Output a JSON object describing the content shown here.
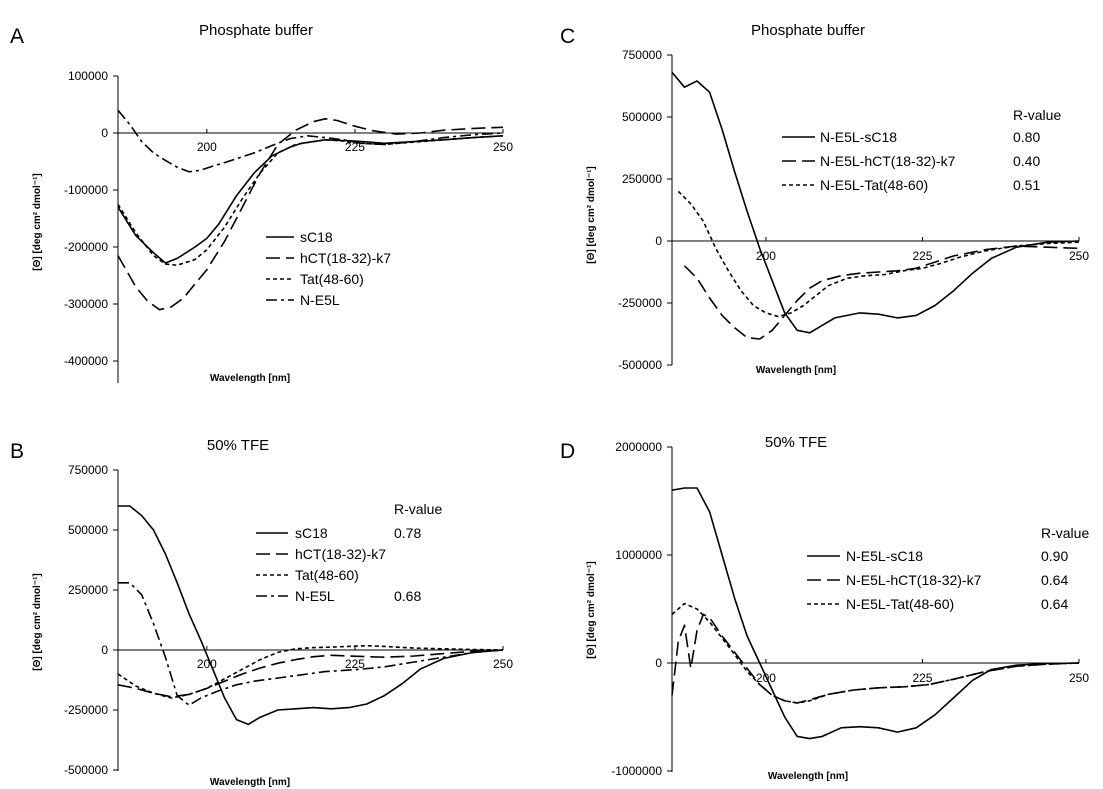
{
  "panels": [
    {
      "id": "A",
      "letter": "A",
      "title": "Phosphate buffer",
      "xlabel": "Wavelength [nm]",
      "ylabel": "[Θ] [deg cm² dmol⁻¹]",
      "r_value_header": "",
      "y_ticks": [
        "100000",
        "0",
        "-100000",
        "-200000",
        "-300000",
        "-400000"
      ],
      "x_ticks": [
        "200",
        "225",
        "250"
      ],
      "legend": [
        {
          "label": "sC18",
          "r": ""
        },
        {
          "label": "hCT(18-32)-k7",
          "r": ""
        },
        {
          "label": "Tat(48-60)",
          "r": ""
        },
        {
          "label": "N-E5L",
          "r": ""
        }
      ]
    },
    {
      "id": "B",
      "letter": "B",
      "title": "50% TFE",
      "xlabel": "Wavelength [nm]",
      "ylabel": "[Θ] [deg cm² dmol⁻¹]",
      "r_value_header": "R-value",
      "y_ticks": [
        "750000",
        "500000",
        "250000",
        "0",
        "-250000",
        "-500000"
      ],
      "x_ticks": [
        "200",
        "225",
        "250"
      ],
      "legend": [
        {
          "label": "sC18",
          "r": "0.78"
        },
        {
          "label": "hCT(18-32)-k7",
          "r": ""
        },
        {
          "label": "Tat(48-60)",
          "r": ""
        },
        {
          "label": "N-E5L",
          "r": "0.68"
        }
      ]
    },
    {
      "id": "C",
      "letter": "C",
      "title": "Phosphate buffer",
      "xlabel": "Wavelength [nm]",
      "ylabel": "[Θ] [deg cm² dmol⁻¹]",
      "r_value_header": "R-value",
      "y_ticks": [
        "750000",
        "500000",
        "250000",
        "0",
        "-250000",
        "-500000"
      ],
      "x_ticks": [
        "200",
        "225",
        "250"
      ],
      "legend": [
        {
          "label": "N-E5L-sC18",
          "r": "0.80"
        },
        {
          "label": "N-E5L-hCT(18-32)-k7",
          "r": "0.40"
        },
        {
          "label": "N-E5L-Tat(48-60)",
          "r": "0.51"
        }
      ]
    },
    {
      "id": "D",
      "letter": "D",
      "title": "50% TFE",
      "xlabel": "Wavelength [nm]",
      "ylabel": "[Θ] [deg cm² dmol⁻¹]",
      "r_value_header": "R-value",
      "y_ticks": [
        "2000000",
        "1000000",
        "0",
        "-1000000"
      ],
      "x_ticks": [
        "200",
        "225",
        "250"
      ],
      "legend": [
        {
          "label": "N-E5L-sC18",
          "r": "0.90"
        },
        {
          "label": "N-E5L-hCT(18-32)-k7",
          "r": "0.64"
        },
        {
          "label": "N-E5L-Tat(48-60)",
          "r": "0.64"
        }
      ]
    }
  ],
  "chart_data": [
    {
      "panel": "A",
      "type": "line",
      "title": "Phosphate buffer",
      "xlabel": "Wavelength [nm]",
      "ylabel": "[Θ] [deg cm² dmol⁻¹]",
      "xlim": [
        185,
        250
      ],
      "ylim": [
        -400000,
        100000
      ],
      "legend_position": "right",
      "series": [
        {
          "name": "sC18",
          "dash": "solid",
          "x": [
            185,
            188,
            191,
            193,
            195,
            198,
            200,
            202,
            205,
            208,
            211,
            214,
            216,
            218,
            220,
            225,
            230,
            235,
            240,
            245,
            250
          ],
          "y": [
            -130000,
            -180000,
            -210000,
            -228000,
            -220000,
            -200000,
            -185000,
            -160000,
            -110000,
            -70000,
            -40000,
            -25000,
            -18000,
            -15000,
            -12000,
            -14000,
            -18000,
            -15000,
            -12000,
            -8000,
            -5000
          ]
        },
        {
          "name": "hCT(18-32)-k7",
          "dash": "long",
          "x": [
            185,
            188,
            190,
            192,
            194,
            196,
            198,
            200,
            203,
            206,
            209,
            212,
            215,
            218,
            220,
            222,
            225,
            228,
            232,
            236,
            240,
            245,
            250
          ],
          "y": [
            -215000,
            -270000,
            -295000,
            -310000,
            -305000,
            -290000,
            -265000,
            -240000,
            -190000,
            -130000,
            -70000,
            -20000,
            5000,
            20000,
            25000,
            22000,
            12000,
            4000,
            -2000,
            0,
            5000,
            8000,
            10000
          ]
        },
        {
          "name": "Tat(48-60)",
          "dash": "short",
          "x": [
            185,
            188,
            191,
            193,
            195,
            198,
            200,
            203,
            206,
            209,
            212,
            215,
            218,
            220,
            223,
            226,
            230,
            235,
            240,
            245,
            250
          ],
          "y": [
            -125000,
            -175000,
            -215000,
            -230000,
            -232000,
            -222000,
            -205000,
            -165000,
            -115000,
            -70000,
            -35000,
            -20000,
            -15000,
            -12000,
            -14000,
            -18000,
            -20000,
            -16000,
            -12000,
            -8000,
            -5000
          ]
        },
        {
          "name": "N-E5L",
          "dash": "dashdot",
          "x": [
            185,
            187,
            189,
            191,
            193,
            195,
            197,
            199,
            201,
            203,
            205,
            208,
            211,
            214,
            217,
            220,
            223,
            226,
            230,
            235,
            240,
            245,
            250
          ],
          "y": [
            40000,
            15000,
            -15000,
            -35000,
            -48000,
            -60000,
            -68000,
            -65000,
            -58000,
            -52000,
            -45000,
            -35000,
            -22000,
            -10000,
            -5000,
            -8000,
            -12000,
            -18000,
            -20000,
            -15000,
            -8000,
            -3000,
            0
          ]
        }
      ]
    },
    {
      "panel": "B",
      "type": "line",
      "title": "50% TFE",
      "xlabel": "Wavelength [nm]",
      "ylabel": "[Θ] [deg cm² dmol⁻¹]",
      "xlim": [
        185,
        250
      ],
      "ylim": [
        -500000,
        750000
      ],
      "legend_position": "right",
      "series": [
        {
          "name": "sC18",
          "dash": "solid",
          "x": [
            185,
            187,
            189,
            191,
            193,
            195,
            197,
            199,
            201,
            203,
            205,
            207,
            209,
            212,
            215,
            218,
            221,
            224,
            227,
            230,
            233,
            236,
            240,
            245,
            250
          ],
          "y": [
            600000,
            600000,
            560000,
            500000,
            400000,
            280000,
            150000,
            40000,
            -80000,
            -200000,
            -290000,
            -310000,
            -280000,
            -250000,
            -245000,
            -240000,
            -245000,
            -240000,
            -225000,
            -190000,
            -140000,
            -80000,
            -35000,
            -10000,
            0
          ]
        },
        {
          "name": "hCT(18-32)-k7",
          "dash": "long",
          "x": [
            185,
            188,
            191,
            194,
            197,
            200,
            203,
            206,
            209,
            212,
            215,
            218,
            221,
            224,
            227,
            230,
            235,
            240,
            245,
            250
          ],
          "y": [
            -145000,
            -160000,
            -180000,
            -195000,
            -185000,
            -160000,
            -130000,
            -100000,
            -75000,
            -55000,
            -40000,
            -28000,
            -22000,
            -25000,
            -28000,
            -30000,
            -25000,
            -15000,
            -5000,
            0
          ]
        },
        {
          "name": "Tat(48-60)",
          "dash": "short",
          "x": [
            185,
            188,
            191,
            194,
            197,
            200,
            203,
            206,
            209,
            212,
            215,
            218,
            221,
            224,
            227,
            230,
            235,
            240,
            245,
            250
          ],
          "y": [
            -100000,
            -150000,
            -180000,
            -200000,
            -185000,
            -160000,
            -120000,
            -80000,
            -40000,
            -10000,
            5000,
            10000,
            12000,
            15000,
            18000,
            15000,
            8000,
            5000,
            2000,
            0
          ]
        },
        {
          "name": "N-E5L",
          "dash": "dashdot",
          "x": [
            185,
            187,
            189,
            191,
            193,
            195,
            197,
            199,
            202,
            205,
            208,
            211,
            214,
            217,
            220,
            223,
            226,
            230,
            235,
            240,
            245,
            250
          ],
          "y": [
            280000,
            280000,
            230000,
            110000,
            -30000,
            -190000,
            -230000,
            -200000,
            -170000,
            -145000,
            -130000,
            -120000,
            -110000,
            -100000,
            -90000,
            -85000,
            -80000,
            -70000,
            -50000,
            -30000,
            -10000,
            0
          ]
        }
      ]
    },
    {
      "panel": "C",
      "type": "line",
      "title": "Phosphate buffer",
      "xlabel": "Wavelength [nm]",
      "ylabel": "[Θ] [deg cm² dmol⁻¹]",
      "xlim": [
        185,
        250
      ],
      "ylim": [
        -500000,
        750000
      ],
      "legend_position": "right",
      "series": [
        {
          "name": "N-E5L-sC18",
          "dash": "solid",
          "x": [
            185,
            187,
            189,
            191,
            193,
            195,
            197,
            199,
            201,
            203,
            205,
            207,
            209,
            211,
            213,
            215,
            218,
            221,
            224,
            227,
            230,
            233,
            236,
            240,
            245,
            250
          ],
          "y": [
            680000,
            620000,
            645000,
            600000,
            450000,
            280000,
            120000,
            -30000,
            -160000,
            -290000,
            -360000,
            -370000,
            -340000,
            -310000,
            -300000,
            -290000,
            -295000,
            -310000,
            -300000,
            -260000,
            -200000,
            -130000,
            -70000,
            -25000,
            -5000,
            0
          ]
        },
        {
          "name": "N-E5L-hCT(18-32)-k7",
          "dash": "long",
          "x": [
            187,
            189,
            191,
            193,
            195,
            197,
            199,
            201,
            203,
            205,
            207,
            209,
            212,
            215,
            218,
            221,
            224,
            227,
            230,
            235,
            240,
            245,
            250
          ],
          "y": [
            -100000,
            -150000,
            -230000,
            -300000,
            -350000,
            -390000,
            -395000,
            -360000,
            -300000,
            -240000,
            -190000,
            -160000,
            -140000,
            -130000,
            -125000,
            -120000,
            -110000,
            -85000,
            -60000,
            -35000,
            -20000,
            -25000,
            -30000
          ]
        },
        {
          "name": "N-E5L-Tat(48-60)",
          "dash": "short",
          "x": [
            186,
            188,
            190,
            192,
            194,
            196,
            198,
            200,
            202,
            204,
            206,
            208,
            210,
            213,
            216,
            219,
            222,
            225,
            228,
            231,
            235,
            240,
            245,
            250
          ],
          "y": [
            200000,
            150000,
            80000,
            -30000,
            -120000,
            -200000,
            -260000,
            -290000,
            -305000,
            -290000,
            -260000,
            -220000,
            -180000,
            -150000,
            -140000,
            -135000,
            -120000,
            -110000,
            -90000,
            -65000,
            -40000,
            -20000,
            -10000,
            -5000
          ]
        }
      ]
    },
    {
      "panel": "D",
      "type": "line",
      "title": "50% TFE",
      "xlabel": "Wavelength [nm]",
      "ylabel": "[Θ] [deg cm² dmol⁻¹]",
      "xlim": [
        185,
        250
      ],
      "ylim": [
        -1000000,
        2000000
      ],
      "legend_position": "right",
      "series": [
        {
          "name": "N-E5L-sC18",
          "dash": "solid",
          "x": [
            185,
            187,
            189,
            191,
            193,
            195,
            197,
            199,
            201,
            203,
            205,
            207,
            209,
            212,
            215,
            218,
            221,
            224,
            227,
            230,
            233,
            236,
            240,
            245,
            250
          ],
          "y": [
            1600000,
            1620000,
            1620000,
            1400000,
            1000000,
            600000,
            250000,
            0,
            -250000,
            -500000,
            -680000,
            -700000,
            -680000,
            -600000,
            -590000,
            -600000,
            -640000,
            -600000,
            -480000,
            -320000,
            -160000,
            -60000,
            -20000,
            -5000,
            0
          ]
        },
        {
          "name": "N-E5L-hCT(18-32)-k7",
          "dash": "long",
          "x": [
            185,
            186,
            187,
            188,
            189,
            190,
            191,
            193,
            195,
            197,
            199,
            201,
            203,
            205,
            207,
            210,
            214,
            218,
            222,
            226,
            230,
            235,
            240,
            245,
            250
          ],
          "y": [
            -300000,
            200000,
            350000,
            -50000,
            300000,
            450000,
            420000,
            250000,
            100000,
            -50000,
            -200000,
            -300000,
            -350000,
            -370000,
            -340000,
            -290000,
            -250000,
            -230000,
            -220000,
            -200000,
            -150000,
            -80000,
            -30000,
            -10000,
            0
          ]
        },
        {
          "name": "N-E5L-Tat(48-60)",
          "dash": "short",
          "x": [
            185,
            187,
            189,
            191,
            193,
            195,
            197,
            199,
            201,
            203,
            205,
            207,
            210,
            214,
            218,
            222,
            226,
            230,
            235,
            240,
            245,
            250
          ],
          "y": [
            450000,
            550000,
            500000,
            380000,
            230000,
            80000,
            -80000,
            -200000,
            -300000,
            -350000,
            -370000,
            -350000,
            -290000,
            -250000,
            -230000,
            -220000,
            -200000,
            -150000,
            -80000,
            -30000,
            -10000,
            0
          ]
        }
      ]
    }
  ]
}
